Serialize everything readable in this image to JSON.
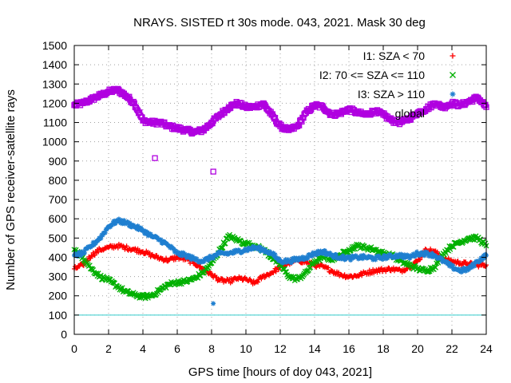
{
  "chart_data": {
    "type": "scatter",
    "title": "NRAYS. SISTED rt 30s mode. 043, 2021. Mask 30 deg",
    "xlabel": "GPS time [hours of doy 043, 2021]",
    "ylabel": "Number of GPS receiver-satellite rays",
    "xlim": [
      0,
      24
    ],
    "ylim": [
      0,
      1500
    ],
    "xticks": [
      0,
      2,
      4,
      6,
      8,
      10,
      12,
      14,
      16,
      18,
      20,
      22,
      24
    ],
    "yticks": [
      0,
      100,
      200,
      300,
      400,
      500,
      600,
      700,
      800,
      900,
      1000,
      1100,
      1200,
      1300,
      1400,
      1500
    ],
    "grid": true,
    "legend_position": "top-right",
    "reference_line": {
      "y": 100,
      "color": "#33cccc"
    },
    "series": [
      {
        "name": "I1: SZA < 70",
        "color": "#ff0000",
        "marker": "+",
        "x": [
          0,
          0.5,
          1,
          1.5,
          2,
          2.5,
          3,
          3.5,
          4,
          4.5,
          5,
          5.5,
          6,
          6.5,
          7,
          7.5,
          8,
          8.5,
          9,
          9.5,
          10,
          10.5,
          11,
          11.5,
          12,
          12.5,
          13,
          13.5,
          14,
          14.5,
          15,
          15.5,
          16,
          16.5,
          17,
          17.5,
          18,
          18.5,
          19,
          19.5,
          20,
          20.5,
          21,
          21.5,
          22,
          22.5,
          23,
          23.5,
          24
        ],
        "y": [
          340,
          360,
          410,
          440,
          450,
          460,
          450,
          440,
          430,
          410,
          395,
          385,
          400,
          390,
          370,
          340,
          310,
          280,
          275,
          290,
          285,
          265,
          300,
          320,
          350,
          370,
          385,
          375,
          360,
          350,
          330,
          310,
          300,
          305,
          320,
          330,
          335,
          340,
          330,
          350,
          380,
          440,
          430,
          390,
          380,
          370,
          365,
          360,
          360
        ],
        "outliers": []
      },
      {
        "name": "I2: 70 <= SZA <= 110",
        "color": "#00b000",
        "marker": "x",
        "x": [
          0,
          0.5,
          1,
          1.5,
          2,
          2.5,
          3,
          3.5,
          4,
          4.5,
          5,
          5.5,
          6,
          6.5,
          7,
          7.5,
          8,
          8.5,
          9,
          9.5,
          10,
          10.5,
          11,
          11.5,
          12,
          12.5,
          13,
          13.5,
          14,
          14.5,
          15,
          15.5,
          16,
          16.5,
          17,
          17.5,
          18,
          18.5,
          19,
          19.5,
          20,
          20.5,
          21,
          21.5,
          22,
          22.5,
          23,
          23.5,
          24
        ],
        "y": [
          440,
          400,
          340,
          300,
          280,
          250,
          220,
          205,
          195,
          200,
          230,
          260,
          270,
          275,
          290,
          320,
          370,
          440,
          510,
          490,
          470,
          460,
          440,
          400,
          360,
          300,
          285,
          320,
          380,
          400,
          390,
          410,
          440,
          460,
          450,
          440,
          420,
          410,
          380,
          360,
          340,
          330,
          350,
          420,
          460,
          480,
          500,
          500,
          460
        ],
        "outliers": []
      },
      {
        "name": "I3: SZA > 110",
        "color": "#1f7fd0",
        "marker": "*",
        "x": [
          0,
          0.5,
          1,
          1.5,
          2,
          2.5,
          3,
          3.5,
          4,
          4.5,
          5,
          5.5,
          6,
          6.5,
          7,
          7.5,
          8,
          8.5,
          9,
          9.5,
          10,
          10.5,
          11,
          11.5,
          12,
          12.5,
          13,
          13.5,
          14,
          14.5,
          15,
          15.5,
          16,
          16.5,
          17,
          17.5,
          18,
          18.5,
          19,
          19.5,
          20,
          20.5,
          21,
          21.5,
          22,
          22.5,
          23,
          23.5,
          24
        ],
        "y": [
          410,
          420,
          460,
          500,
          560,
          590,
          580,
          560,
          540,
          510,
          490,
          460,
          420,
          410,
          390,
          380,
          400,
          420,
          420,
          430,
          440,
          450,
          440,
          420,
          380,
          380,
          390,
          400,
          420,
          430,
          410,
          400,
          395,
          400,
          400,
          395,
          400,
          405,
          410,
          400,
          420,
          420,
          410,
          380,
          350,
          330,
          340,
          380,
          410
        ],
        "outliers": [
          {
            "x": 8.1,
            "y": 160
          }
        ]
      },
      {
        "name": "global",
        "color": "#b000e0",
        "marker": "square",
        "x": [
          0,
          0.5,
          1,
          1.5,
          2,
          2.5,
          3,
          3.5,
          4,
          4.5,
          5,
          5.5,
          6,
          6.5,
          7,
          7.5,
          8,
          8.5,
          9,
          9.5,
          10,
          10.5,
          11,
          11.5,
          12,
          12.5,
          13,
          13.5,
          14,
          14.5,
          15,
          15.5,
          16,
          16.5,
          17,
          17.5,
          18,
          18.5,
          19,
          19.5,
          20,
          20.5,
          21,
          21.5,
          22,
          22.5,
          23,
          23.5,
          24
        ],
        "y": [
          1190,
          1200,
          1220,
          1240,
          1260,
          1270,
          1240,
          1200,
          1110,
          1100,
          1100,
          1080,
          1070,
          1060,
          1050,
          1060,
          1100,
          1140,
          1180,
          1200,
          1180,
          1180,
          1200,
          1140,
          1080,
          1060,
          1080,
          1150,
          1190,
          1180,
          1140,
          1150,
          1170,
          1150,
          1140,
          1160,
          1140,
          1110,
          1100,
          1120,
          1150,
          1170,
          1200,
          1180,
          1200,
          1190,
          1210,
          1230,
          1180
        ],
        "outliers": [
          {
            "x": 4.7,
            "y": 915
          },
          {
            "x": 8.1,
            "y": 845
          }
        ]
      }
    ]
  }
}
